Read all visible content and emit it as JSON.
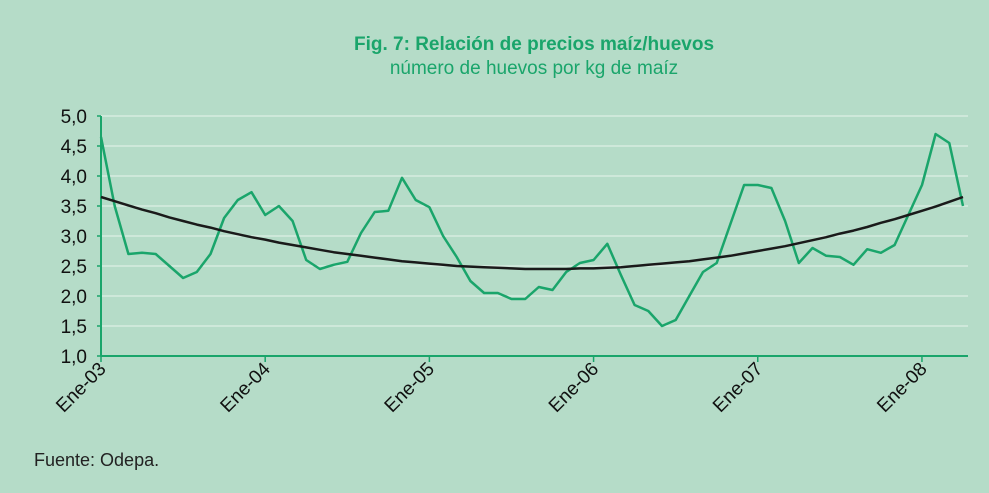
{
  "chart_data": {
    "type": "line",
    "title": "Fig. 7: Relación de precios maíz/huevos",
    "subtitle": "número de huevos por kg de maíz",
    "source": "Fuente: Odepa.",
    "categories": [
      "Ene-03",
      null,
      null,
      null,
      null,
      null,
      null,
      null,
      null,
      null,
      null,
      null,
      "Ene-04",
      null,
      null,
      null,
      null,
      null,
      null,
      null,
      null,
      null,
      null,
      null,
      "Ene-05",
      null,
      null,
      null,
      null,
      null,
      null,
      null,
      null,
      null,
      null,
      null,
      "Ene-06",
      null,
      null,
      null,
      null,
      null,
      null,
      null,
      null,
      null,
      null,
      null,
      "Ene-07",
      null,
      null,
      null,
      null,
      null,
      null,
      null,
      null,
      null,
      null,
      null,
      "Ene-08",
      null,
      null,
      null
    ],
    "series": [
      {
        "color": "#1aa56b",
        "values": [
          4.65,
          3.5,
          2.7,
          2.72,
          2.7,
          2.5,
          2.3,
          2.4,
          2.7,
          3.3,
          3.6,
          3.73,
          3.35,
          3.5,
          3.25,
          2.6,
          2.45,
          2.52,
          2.57,
          3.05,
          3.4,
          3.42,
          3.97,
          3.6,
          3.48,
          3.0,
          2.65,
          2.25,
          2.05,
          2.05,
          1.95,
          1.95,
          2.15,
          2.1,
          2.4,
          2.55,
          2.6,
          2.87,
          2.35,
          1.85,
          1.75,
          1.5,
          1.6,
          2.0,
          2.4,
          2.55,
          3.2,
          3.85,
          3.85,
          3.8,
          3.25,
          2.55,
          2.8,
          2.67,
          2.65,
          2.52,
          2.78,
          2.72,
          2.85,
          3.35,
          3.85,
          4.7,
          4.55,
          3.5
        ]
      },
      {
        "color": "#1a1a1a",
        "values": [
          3.65,
          3.58,
          3.51,
          3.44,
          3.38,
          3.31,
          3.25,
          3.19,
          3.14,
          3.08,
          3.03,
          2.98,
          2.94,
          2.89,
          2.85,
          2.81,
          2.77,
          2.73,
          2.7,
          2.67,
          2.64,
          2.61,
          2.58,
          2.56,
          2.54,
          2.52,
          2.5,
          2.49,
          2.48,
          2.47,
          2.46,
          2.45,
          2.45,
          2.45,
          2.45,
          2.46,
          2.46,
          2.47,
          2.48,
          2.5,
          2.52,
          2.54,
          2.56,
          2.58,
          2.61,
          2.64,
          2.67,
          2.71,
          2.75,
          2.79,
          2.83,
          2.88,
          2.93,
          2.98,
          3.04,
          3.09,
          3.15,
          3.22,
          3.28,
          3.35,
          3.42,
          3.49,
          3.57,
          3.65
        ]
      }
    ],
    "ylim": [
      1,
      5
    ],
    "yticks": [
      {
        "value": 1,
        "label": "1,0"
      },
      {
        "value": 1.5,
        "label": "1,5"
      },
      {
        "value": 2,
        "label": "2,0"
      },
      {
        "value": 2.5,
        "label": "2,5"
      },
      {
        "value": 3,
        "label": "3,0"
      },
      {
        "value": 3.5,
        "label": "3,5"
      },
      {
        "value": 4,
        "label": "4,0"
      },
      {
        "value": 4.5,
        "label": "4,5"
      },
      {
        "value": 5,
        "label": "5,0"
      }
    ],
    "grid": true,
    "axis_color": "#1aa56b"
  }
}
